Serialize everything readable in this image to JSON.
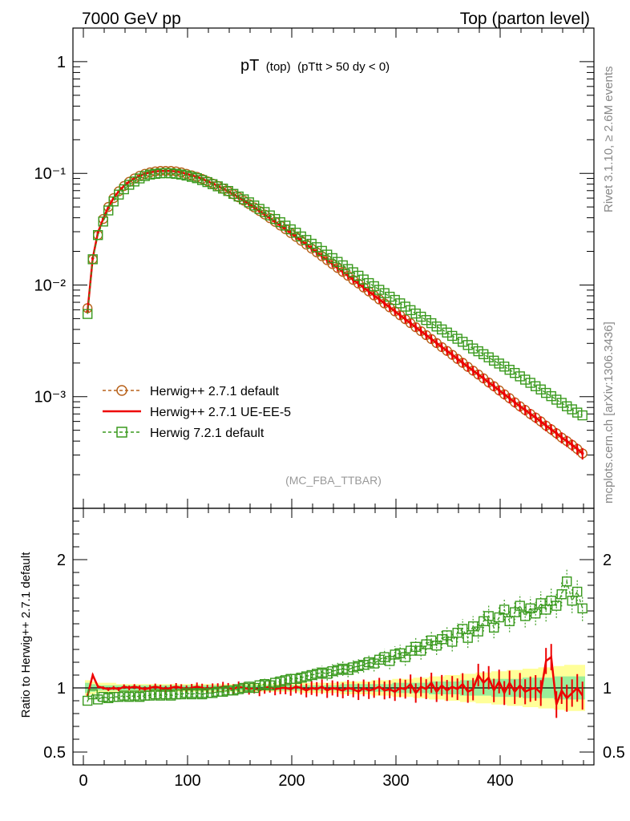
{
  "header": {
    "left": "7000 GeV pp",
    "right": "Top (parton level)"
  },
  "side_labels": {
    "top": "Rivet 3.1.10, ≥ 2.6M events",
    "bottom": "mcplots.cern.ch [arXiv:1306.3436]"
  },
  "chart_data": {
    "type": "line",
    "title": {
      "main": "pT",
      "sub1": "(top)",
      "sub2": "(pTtt > 50 dy < 0)"
    },
    "analysis_label": "(MC_FBA_TTBAR)",
    "x": [
      4,
      9,
      14,
      19,
      24,
      29,
      34,
      39,
      44,
      49,
      54,
      59,
      64,
      69,
      74,
      79,
      84,
      89,
      94,
      99,
      104,
      109,
      114,
      119,
      124,
      129,
      134,
      139,
      144,
      149,
      154,
      159,
      164,
      169,
      174,
      179,
      184,
      189,
      194,
      199,
      204,
      209,
      214,
      219,
      224,
      229,
      234,
      239,
      244,
      249,
      254,
      259,
      264,
      269,
      274,
      279,
      284,
      289,
      294,
      299,
      304,
      309,
      314,
      319,
      324,
      329,
      334,
      339,
      344,
      349,
      354,
      359,
      364,
      369,
      374,
      379,
      384,
      389,
      394,
      399,
      404,
      409,
      414,
      419,
      424,
      429,
      434,
      439,
      444,
      449,
      454,
      459,
      464,
      469,
      474,
      479
    ],
    "xlim": [
      -10,
      490
    ],
    "xticks": [
      "0",
      "100",
      "200",
      "300",
      "400"
    ],
    "main_panel": {
      "yscale": "log",
      "ylim": [
        0.0001,
        2.0
      ],
      "yticks": [
        "10⁻³",
        "10⁻²",
        "10⁻¹",
        "1"
      ]
    },
    "ratio_panel": {
      "ylabel": "Ratio to Herwig++ 2.7.1 default",
      "ylim": [
        0.4,
        2.4
      ],
      "yticks": [
        "0.5",
        "1",
        "2"
      ],
      "bands": {
        "yellow_halfwidth": [
          0.06,
          0.05,
          0.04,
          0.04,
          0.04,
          0.04,
          0.03,
          0.03,
          0.03,
          0.03,
          0.03,
          0.03,
          0.03,
          0.03,
          0.03,
          0.03,
          0.03,
          0.03,
          0.03,
          0.03,
          0.03,
          0.03,
          0.03,
          0.03,
          0.03,
          0.03,
          0.03,
          0.03,
          0.03,
          0.03,
          0.03,
          0.03,
          0.03,
          0.03,
          0.03,
          0.03,
          0.03,
          0.03,
          0.03,
          0.03,
          0.03,
          0.04,
          0.04,
          0.04,
          0.04,
          0.04,
          0.04,
          0.04,
          0.04,
          0.05,
          0.05,
          0.05,
          0.05,
          0.05,
          0.05,
          0.06,
          0.06,
          0.06,
          0.06,
          0.07,
          0.07,
          0.07,
          0.07,
          0.08,
          0.08,
          0.08,
          0.09,
          0.09,
          0.09,
          0.1,
          0.1,
          0.1,
          0.11,
          0.11,
          0.11,
          0.12,
          0.12,
          0.12,
          0.13,
          0.13,
          0.13,
          0.14,
          0.14,
          0.14,
          0.15,
          0.15,
          0.15,
          0.16,
          0.16,
          0.16,
          0.17,
          0.17,
          0.18,
          0.18,
          0.18,
          0.18
        ],
        "green_halfwidth": [
          0.04,
          0.03,
          0.02,
          0.02,
          0.02,
          0.02,
          0.02,
          0.02,
          0.02,
          0.02,
          0.02,
          0.02,
          0.02,
          0.02,
          0.02,
          0.02,
          0.02,
          0.02,
          0.02,
          0.02,
          0.02,
          0.02,
          0.02,
          0.02,
          0.02,
          0.02,
          0.02,
          0.02,
          0.02,
          0.02,
          0.02,
          0.02,
          0.02,
          0.02,
          0.02,
          0.02,
          0.02,
          0.02,
          0.02,
          0.02,
          0.02,
          0.02,
          0.02,
          0.02,
          0.02,
          0.02,
          0.02,
          0.02,
          0.02,
          0.03,
          0.03,
          0.03,
          0.03,
          0.03,
          0.03,
          0.03,
          0.03,
          0.03,
          0.03,
          0.04,
          0.04,
          0.04,
          0.04,
          0.04,
          0.04,
          0.04,
          0.05,
          0.05,
          0.05,
          0.05,
          0.05,
          0.05,
          0.06,
          0.06,
          0.06,
          0.06,
          0.06,
          0.06,
          0.07,
          0.07,
          0.07,
          0.07,
          0.07,
          0.07,
          0.08,
          0.08,
          0.08,
          0.08,
          0.08,
          0.08,
          0.09,
          0.09,
          0.09,
          0.09,
          0.09,
          0.09
        ]
      }
    },
    "legend_position": "lower-left",
    "series": [
      {
        "name": "Herwig++ 2.7.1 default",
        "color": "#b8621b",
        "style": "dashed-circle",
        "values": [
          0.0062,
          0.017,
          0.028,
          0.039,
          0.05,
          0.06,
          0.069,
          0.077,
          0.084,
          0.09,
          0.095,
          0.099,
          0.102,
          0.104,
          0.105,
          0.105,
          0.105,
          0.104,
          0.102,
          0.099,
          0.096,
          0.093,
          0.089,
          0.085,
          0.081,
          0.077,
          0.073,
          0.069,
          0.065,
          0.061,
          0.057,
          0.053,
          0.0495,
          0.046,
          0.0428,
          0.0397,
          0.0368,
          0.0341,
          0.0316,
          0.0292,
          0.027,
          0.0249,
          0.023,
          0.0212,
          0.0196,
          0.0181,
          0.0167,
          0.0154,
          0.0142,
          0.0131,
          0.0121,
          0.0111,
          0.0103,
          0.0095,
          0.00875,
          0.00806,
          0.00743,
          0.00684,
          0.00631,
          0.00581,
          0.00536,
          0.00494,
          0.00455,
          0.00419,
          0.00386,
          0.00356,
          0.00328,
          0.00302,
          0.00278,
          0.00257,
          0.00237,
          0.00218,
          0.00201,
          0.00185,
          0.00171,
          0.00158,
          0.00146,
          0.00134,
          0.00124,
          0.00114,
          0.00105,
          0.00097,
          0.00089,
          0.00082,
          0.00076,
          0.0007,
          0.00065,
          0.0006,
          0.00055,
          0.00051,
          0.00047,
          0.00043,
          0.0004,
          0.00037,
          0.00034,
          0.00031
        ],
        "ratio": [
          1.0,
          1.0,
          1.0,
          1.0,
          1.0,
          1.0,
          1.0,
          1.0,
          1.0,
          1.0,
          1.0,
          1.0,
          1.0,
          1.0,
          1.0,
          1.0,
          1.0,
          1.0,
          1.0,
          1.0,
          1.0,
          1.0,
          1.0,
          1.0,
          1.0,
          1.0,
          1.0,
          1.0,
          1.0,
          1.0,
          1.0,
          1.0,
          1.0,
          1.0,
          1.0,
          1.0,
          1.0,
          1.0,
          1.0,
          1.0,
          1.0,
          1.0,
          1.0,
          1.0,
          1.0,
          1.0,
          1.0,
          1.0,
          1.0,
          1.0,
          1.0,
          1.0,
          1.0,
          1.0,
          1.0,
          1.0,
          1.0,
          1.0,
          1.0,
          1.0,
          1.0,
          1.0,
          1.0,
          1.0,
          1.0,
          1.0,
          1.0,
          1.0,
          1.0,
          1.0,
          1.0,
          1.0,
          1.0,
          1.0,
          1.0,
          1.0,
          1.0,
          1.0,
          1.0,
          1.0,
          1.0,
          1.0,
          1.0,
          1.0,
          1.0,
          1.0,
          1.0,
          1.0,
          1.0,
          1.0,
          1.0,
          1.0,
          1.0,
          1.0,
          1.0,
          1.0
        ]
      },
      {
        "name": "Herwig++ 2.7.1 UE-EE-5",
        "color": "#ee0000",
        "style": "solid-errorbars",
        "values": [
          0.0058,
          0.0174,
          0.0295,
          0.039,
          0.05,
          0.06,
          0.069,
          0.077,
          0.084,
          0.09,
          0.095,
          0.099,
          0.102,
          0.104,
          0.105,
          0.105,
          0.105,
          0.104,
          0.102,
          0.099,
          0.096,
          0.093,
          0.089,
          0.085,
          0.081,
          0.077,
          0.073,
          0.069,
          0.065,
          0.061,
          0.057,
          0.053,
          0.0495,
          0.046,
          0.0428,
          0.0397,
          0.0368,
          0.0341,
          0.0316,
          0.0292,
          0.027,
          0.0249,
          0.023,
          0.0212,
          0.0196,
          0.0181,
          0.0167,
          0.0154,
          0.0142,
          0.0131,
          0.0121,
          0.0111,
          0.0103,
          0.0095,
          0.00875,
          0.00806,
          0.00743,
          0.00684,
          0.00631,
          0.00581,
          0.00536,
          0.00494,
          0.00455,
          0.00419,
          0.00386,
          0.00356,
          0.00328,
          0.00302,
          0.00278,
          0.00257,
          0.00237,
          0.00218,
          0.00201,
          0.00185,
          0.00171,
          0.00158,
          0.00146,
          0.00134,
          0.00124,
          0.00114,
          0.00105,
          0.00097,
          0.00089,
          0.00082,
          0.00076,
          0.0007,
          0.00065,
          0.0006,
          0.00055,
          0.00051,
          0.00047,
          0.00043,
          0.0004,
          0.00037,
          0.00034,
          0.00031
        ],
        "ratio": [
          0.94,
          1.1,
          1.01,
          1.0,
          0.99,
          1.0,
          0.99,
          1.01,
          1.0,
          1.01,
          1.0,
          0.99,
          1.0,
          1.01,
          1.0,
          0.99,
          1.0,
          1.01,
          1.0,
          0.99,
          1.0,
          1.01,
          1.0,
          0.99,
          1.0,
          1.0,
          1.01,
          1.0,
          0.99,
          1.01,
          1.0,
          0.99,
          1.0,
          0.98,
          1.0,
          1.01,
          0.99,
          1.0,
          1.0,
          0.99,
          1.01,
          1.0,
          0.98,
          1.0,
          0.99,
          1.01,
          0.98,
          1.0,
          0.99,
          0.98,
          1.0,
          0.99,
          0.97,
          1.0,
          0.98,
          0.99,
          1.01,
          0.98,
          0.99,
          0.97,
          1.0,
          0.99,
          1.03,
          0.96,
          1.01,
          0.99,
          1.04,
          0.97,
          1.02,
          0.98,
          1.01,
          0.99,
          1.03,
          0.97,
          0.99,
          1.1,
          1.04,
          1.08,
          0.98,
          1.05,
          0.96,
          1.04,
          0.97,
          1.02,
          0.97,
          0.99,
          1.0,
          0.96,
          1.21,
          1.24,
          0.87,
          0.98,
          0.92,
          0.96,
          1.0,
          0.94
        ]
      },
      {
        "name": "Herwig 7.2.1 default",
        "color": "#3a9a1e",
        "style": "dashed-square",
        "values": [
          0.0055,
          0.017,
          0.028,
          0.037,
          0.0465,
          0.056,
          0.0645,
          0.072,
          0.079,
          0.0845,
          0.09,
          0.0945,
          0.0975,
          0.099,
          0.1,
          0.1005,
          0.1,
          0.099,
          0.0975,
          0.0955,
          0.093,
          0.0905,
          0.087,
          0.0835,
          0.08,
          0.0765,
          0.073,
          0.0695,
          0.0655,
          0.062,
          0.0585,
          0.055,
          0.0515,
          0.048,
          0.045,
          0.042,
          0.039,
          0.0365,
          0.034,
          0.0315,
          0.0294,
          0.0272,
          0.0253,
          0.0234,
          0.0218,
          0.0202,
          0.0187,
          0.0174,
          0.0161,
          0.015,
          0.0139,
          0.013,
          0.0121,
          0.0112,
          0.0104,
          0.00975,
          0.00905,
          0.00845,
          0.00785,
          0.00735,
          0.00685,
          0.0064,
          0.00595,
          0.00555,
          0.0052,
          0.00485,
          0.00455,
          0.00425,
          0.004,
          0.00375,
          0.0035,
          0.0033,
          0.0031,
          0.0029,
          0.0027,
          0.00255,
          0.0024,
          0.00225,
          0.0021,
          0.00198,
          0.00186,
          0.00174,
          0.00163,
          0.00152,
          0.00142,
          0.00133,
          0.00124,
          0.00116,
          0.00108,
          0.00101,
          0.00094,
          0.00088,
          0.00082,
          0.00077,
          0.00072,
          0.00068
        ],
        "ratio": [
          0.9,
          0.95,
          0.91,
          0.93,
          0.92,
          0.93,
          0.93,
          0.94,
          0.93,
          0.94,
          0.93,
          0.94,
          0.94,
          0.95,
          0.94,
          0.95,
          0.94,
          0.95,
          0.95,
          0.96,
          0.95,
          0.96,
          0.95,
          0.96,
          0.96,
          0.97,
          0.97,
          0.98,
          0.98,
          0.99,
          1.0,
          1.01,
          1.0,
          1.02,
          1.03,
          1.02,
          1.04,
          1.05,
          1.06,
          1.07,
          1.07,
          1.08,
          1.09,
          1.1,
          1.11,
          1.12,
          1.11,
          1.13,
          1.14,
          1.15,
          1.14,
          1.16,
          1.17,
          1.18,
          1.2,
          1.19,
          1.22,
          1.24,
          1.21,
          1.26,
          1.27,
          1.24,
          1.29,
          1.32,
          1.29,
          1.34,
          1.37,
          1.33,
          1.38,
          1.41,
          1.36,
          1.43,
          1.46,
          1.39,
          1.48,
          1.44,
          1.52,
          1.56,
          1.47,
          1.55,
          1.61,
          1.52,
          1.59,
          1.64,
          1.56,
          1.62,
          1.58,
          1.66,
          1.61,
          1.68,
          1.64,
          1.73,
          1.83,
          1.68,
          1.75,
          1.62
        ]
      }
    ]
  }
}
